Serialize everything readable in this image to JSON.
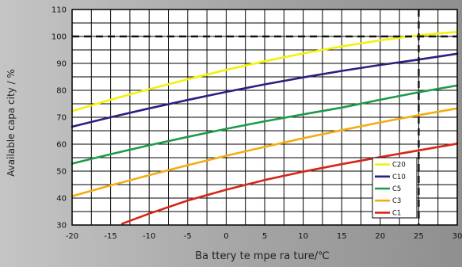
{
  "chart_data": {
    "type": "line",
    "title": "",
    "xlabel": "Ba ttery  te mpe ra ture/℃",
    "ylabel": "Available capa city / %",
    "xlim": [
      -20,
      30
    ],
    "ylim": [
      30,
      110
    ],
    "xticks": [
      "-20",
      "-15",
      "-10",
      "-5",
      "0",
      "5",
      "10",
      "15",
      "20",
      "25",
      "30"
    ],
    "yticks": [
      "30",
      "40",
      "50",
      "60",
      "70",
      "80",
      "90",
      "100",
      "110"
    ],
    "grid": true,
    "legend_position": "bottom-right",
    "reference_lines": [
      {
        "orientation": "horizontal",
        "value": 100,
        "style": "dashed",
        "color": "#111111"
      },
      {
        "orientation": "vertical",
        "value": 25,
        "style": "dashed",
        "color": "#111111"
      }
    ],
    "series": [
      {
        "name": "C20",
        "color": "#f2f20a",
        "x": [
          -20,
          -15,
          -10,
          -5,
          0,
          5,
          10,
          15,
          20,
          25,
          30
        ],
        "y": [
          72.3,
          76.5,
          80.4,
          84.1,
          87.6,
          90.8,
          93.7,
          96.3,
          98.6,
          100.4,
          101.7
        ]
      },
      {
        "name": "C10",
        "color": "#2b1f80",
        "x": [
          -20,
          -15,
          -10,
          -5,
          0,
          5,
          10,
          15,
          20,
          25,
          30
        ],
        "y": [
          66.5,
          70.0,
          73.3,
          76.4,
          79.4,
          82.2,
          84.8,
          87.2,
          89.4,
          91.4,
          93.6
        ]
      },
      {
        "name": "C5",
        "color": "#1e9a4a",
        "x": [
          -20,
          -15,
          -10,
          -5,
          0,
          5,
          10,
          15,
          20,
          25,
          30
        ],
        "y": [
          52.8,
          56.3,
          59.6,
          62.7,
          65.7,
          68.5,
          71.1,
          73.6,
          76.5,
          79.3,
          81.8
        ]
      },
      {
        "name": "C3",
        "color": "#f2ad12",
        "x": [
          -20,
          -15,
          -10,
          -5,
          0,
          5,
          10,
          15,
          20,
          25,
          30
        ],
        "y": [
          40.7,
          44.7,
          48.5,
          52.2,
          55.7,
          59.0,
          62.2,
          65.2,
          68.1,
          70.8,
          73.3
        ]
      },
      {
        "name": "C1",
        "color": "#d62618",
        "x": [
          -13.5,
          -10,
          -5,
          0,
          5,
          10,
          15,
          20,
          25,
          30
        ],
        "y": [
          30.5,
          34.2,
          39.1,
          43.1,
          46.7,
          49.8,
          52.6,
          55.2,
          57.7,
          60.2
        ]
      }
    ]
  }
}
